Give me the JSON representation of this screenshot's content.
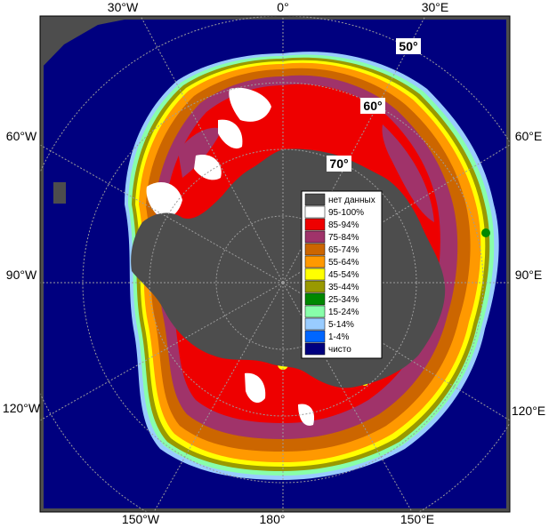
{
  "map": {
    "colors": {
      "ocean": "#00007f",
      "land": "#4d4d4d",
      "frame": "#000000",
      "grid": "#9c9c9c"
    },
    "longitude_labels": {
      "top": [
        "30°W",
        "0°",
        "30°E"
      ],
      "left": [
        "60°W",
        "90°W",
        "120°W"
      ],
      "right": [
        "60°E",
        "90°E",
        "120°E"
      ],
      "bottom": [
        "150°W",
        "180°",
        "150°E"
      ]
    },
    "latitude_labels": [
      "50°",
      "60°",
      "70°"
    ]
  },
  "legend": {
    "items": [
      {
        "label": "нет данных",
        "color": "#4d4d4d"
      },
      {
        "label": "95-100%",
        "color": "#ffffff"
      },
      {
        "label": "85-94%",
        "color": "#ee0000"
      },
      {
        "label": "75-84%",
        "color": "#a0336a"
      },
      {
        "label": "65-74%",
        "color": "#cc6600"
      },
      {
        "label": "55-64%",
        "color": "#ff9900"
      },
      {
        "label": "45-54%",
        "color": "#ffff00"
      },
      {
        "label": "35-44%",
        "color": "#999900"
      },
      {
        "label": "25-34%",
        "color": "#008800"
      },
      {
        "label": "15-24%",
        "color": "#88ffaa"
      },
      {
        "label": "5-14%",
        "color": "#99ccff"
      },
      {
        "label": "1-4%",
        "color": "#0066ff"
      },
      {
        "label": "чисто",
        "color": "#00007f"
      }
    ]
  }
}
